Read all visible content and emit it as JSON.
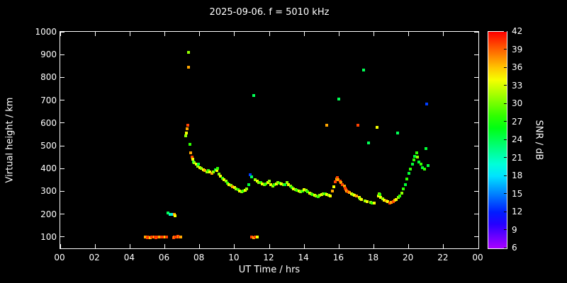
{
  "title": "2025-09-06. f = 5010 kHz",
  "chart_data": {
    "type": "scatter",
    "title": "2025-09-06. f = 5010 kHz",
    "xlabel": "UT Time / hrs",
    "ylabel": "Virtual height / km",
    "xlim": [
      0,
      24
    ],
    "ylim": [
      50,
      1000
    ],
    "background": "#000000",
    "axis_color": "#ffffff",
    "grid": false,
    "x_ticks": {
      "values": [
        0,
        2,
        4,
        6,
        8,
        10,
        12,
        14,
        16,
        18,
        20,
        22,
        24
      ],
      "labels": [
        "00",
        "02",
        "04",
        "06",
        "08",
        "10",
        "12",
        "14",
        "16",
        "18",
        "20",
        "22",
        "00"
      ]
    },
    "y_ticks": {
      "values": [
        100,
        200,
        300,
        400,
        500,
        600,
        700,
        800,
        900,
        1000
      ],
      "labels": [
        "100",
        "200",
        "300",
        "400",
        "500",
        "600",
        "700",
        "800",
        "900",
        "1000"
      ]
    },
    "colorbar": {
      "label": "SNR / dB",
      "min": 6,
      "max": 42,
      "ticks": [
        6,
        9,
        12,
        15,
        18,
        21,
        24,
        27,
        30,
        33,
        36,
        39,
        42
      ],
      "top_color": "#ff0000",
      "bottom_color": "#9900ff"
    },
    "points_format": [
      "ut_hours",
      "virtual_height_km",
      "snr_db"
    ],
    "points": [
      [
        4.9,
        100,
        37
      ],
      [
        5.0,
        98,
        40
      ],
      [
        5.05,
        100,
        40
      ],
      [
        5.15,
        97,
        36
      ],
      [
        5.25,
        100,
        40
      ],
      [
        5.3,
        99,
        40
      ],
      [
        5.4,
        100,
        36
      ],
      [
        5.45,
        100,
        40
      ],
      [
        5.5,
        98,
        40
      ],
      [
        5.6,
        100,
        40
      ],
      [
        5.7,
        100,
        37
      ],
      [
        5.8,
        99,
        40
      ],
      [
        5.9,
        100,
        40
      ],
      [
        6.0,
        100,
        36
      ],
      [
        6.1,
        100,
        40
      ],
      [
        6.5,
        98,
        40
      ],
      [
        6.55,
        100,
        37
      ],
      [
        6.6,
        100,
        40
      ],
      [
        6.65,
        101,
        40
      ],
      [
        6.7,
        100,
        40
      ],
      [
        6.75,
        102,
        40
      ],
      [
        6.8,
        100,
        37
      ],
      [
        6.85,
        100,
        40
      ],
      [
        6.9,
        100,
        37
      ],
      [
        6.2,
        205,
        24
      ],
      [
        6.3,
        200,
        21
      ],
      [
        6.45,
        198,
        18
      ],
      [
        6.55,
        200,
        37
      ],
      [
        6.6,
        192,
        34
      ],
      [
        7.2,
        545,
        31
      ],
      [
        7.25,
        555,
        34
      ],
      [
        7.3,
        575,
        37
      ],
      [
        7.32,
        590,
        40
      ],
      [
        7.35,
        910,
        31
      ],
      [
        7.38,
        845,
        37
      ],
      [
        7.45,
        505,
        28
      ],
      [
        7.5,
        470,
        37
      ],
      [
        7.55,
        452,
        40
      ],
      [
        7.6,
        440,
        34
      ],
      [
        7.65,
        430,
        25
      ],
      [
        7.7,
        425,
        31
      ],
      [
        7.8,
        418,
        34
      ],
      [
        7.9,
        410,
        31
      ],
      [
        7.95,
        420,
        25
      ],
      [
        8.0,
        405,
        34
      ],
      [
        8.1,
        400,
        31
      ],
      [
        8.2,
        396,
        34
      ],
      [
        8.3,
        390,
        37
      ],
      [
        8.4,
        386,
        31
      ],
      [
        8.5,
        390,
        28
      ],
      [
        8.6,
        385,
        34
      ],
      [
        8.7,
        380,
        37
      ],
      [
        8.8,
        384,
        31
      ],
      [
        8.9,
        394,
        25
      ],
      [
        9.0,
        390,
        34
      ],
      [
        9.05,
        400,
        28
      ],
      [
        9.1,
        376,
        31
      ],
      [
        9.2,
        366,
        34
      ],
      [
        9.3,
        356,
        28
      ],
      [
        9.4,
        350,
        34
      ],
      [
        9.5,
        344,
        31
      ],
      [
        9.6,
        336,
        28
      ],
      [
        9.7,
        330,
        34
      ],
      [
        9.8,
        325,
        31
      ],
      [
        9.9,
        320,
        37
      ],
      [
        10.0,
        318,
        34
      ],
      [
        10.1,
        312,
        31
      ],
      [
        10.2,
        308,
        28
      ],
      [
        10.3,
        300,
        34
      ],
      [
        10.4,
        298,
        31
      ],
      [
        10.5,
        302,
        28
      ],
      [
        10.6,
        306,
        34
      ],
      [
        10.7,
        310,
        31
      ],
      [
        10.8,
        330,
        25
      ],
      [
        10.9,
        372,
        13
      ],
      [
        11.0,
        364,
        24
      ],
      [
        11.1,
        720,
        24
      ],
      [
        11.0,
        100,
        40
      ],
      [
        11.1,
        98,
        37
      ],
      [
        11.2,
        100,
        40
      ],
      [
        11.3,
        100,
        34
      ],
      [
        11.2,
        350,
        31
      ],
      [
        11.3,
        346,
        34
      ],
      [
        11.4,
        340,
        31
      ],
      [
        11.5,
        338,
        28
      ],
      [
        11.6,
        332,
        34
      ],
      [
        11.7,
        328,
        31
      ],
      [
        11.8,
        334,
        28
      ],
      [
        11.9,
        340,
        34
      ],
      [
        12.0,
        344,
        31
      ],
      [
        12.1,
        330,
        34
      ],
      [
        12.2,
        322,
        31
      ],
      [
        12.3,
        328,
        28
      ],
      [
        12.4,
        334,
        34
      ],
      [
        12.5,
        340,
        31
      ],
      [
        12.6,
        336,
        28
      ],
      [
        12.7,
        332,
        34
      ],
      [
        12.8,
        330,
        31
      ],
      [
        12.9,
        328,
        25
      ],
      [
        13.0,
        338,
        31
      ],
      [
        13.1,
        330,
        34
      ],
      [
        13.2,
        324,
        31
      ],
      [
        13.3,
        318,
        28
      ],
      [
        13.4,
        312,
        34
      ],
      [
        13.5,
        308,
        31
      ],
      [
        13.6,
        304,
        28
      ],
      [
        13.7,
        300,
        34
      ],
      [
        13.8,
        298,
        31
      ],
      [
        13.9,
        302,
        28
      ],
      [
        14.0,
        308,
        34
      ],
      [
        14.1,
        304,
        31
      ],
      [
        14.2,
        298,
        28
      ],
      [
        14.3,
        293,
        34
      ],
      [
        14.4,
        290,
        31
      ],
      [
        14.5,
        287,
        28
      ],
      [
        14.6,
        284,
        34
      ],
      [
        14.7,
        280,
        31
      ],
      [
        14.8,
        278,
        28
      ],
      [
        14.9,
        282,
        31
      ],
      [
        15.0,
        286,
        34
      ],
      [
        15.1,
        290,
        31
      ],
      [
        15.2,
        288,
        28
      ],
      [
        15.3,
        285,
        34
      ],
      [
        15.3,
        590,
        37
      ],
      [
        15.4,
        282,
        31
      ],
      [
        15.5,
        280,
        34
      ],
      [
        15.6,
        300,
        37
      ],
      [
        15.7,
        320,
        34
      ],
      [
        15.8,
        342,
        40
      ],
      [
        15.85,
        355,
        37
      ],
      [
        15.9,
        362,
        40
      ],
      [
        15.95,
        350,
        37
      ],
      [
        16.0,
        705,
        24
      ],
      [
        16.05,
        345,
        40
      ],
      [
        16.1,
        338,
        37
      ],
      [
        16.2,
        330,
        40
      ],
      [
        16.3,
        322,
        37
      ],
      [
        16.35,
        315,
        40
      ],
      [
        16.4,
        308,
        40
      ],
      [
        16.45,
        302,
        37
      ],
      [
        16.5,
        298,
        40
      ],
      [
        16.6,
        295,
        37
      ],
      [
        16.7,
        290,
        34
      ],
      [
        16.8,
        287,
        31
      ],
      [
        16.9,
        284,
        34
      ],
      [
        17.0,
        280,
        37
      ],
      [
        17.1,
        590,
        40
      ],
      [
        17.15,
        272,
        34
      ],
      [
        17.2,
        268,
        31
      ],
      [
        17.3,
        264,
        34
      ],
      [
        17.4,
        833,
        24
      ],
      [
        17.5,
        258,
        31
      ],
      [
        17.6,
        255,
        34
      ],
      [
        17.7,
        512,
        24
      ],
      [
        17.8,
        252,
        31
      ],
      [
        17.9,
        250,
        28
      ],
      [
        18.0,
        248,
        34
      ],
      [
        18.2,
        582,
        34
      ],
      [
        18.25,
        280,
        34
      ],
      [
        18.3,
        290,
        31
      ],
      [
        18.35,
        285,
        28
      ],
      [
        18.4,
        275,
        34
      ],
      [
        18.5,
        268,
        31
      ],
      [
        18.6,
        262,
        34
      ],
      [
        18.7,
        258,
        37
      ],
      [
        18.8,
        254,
        34
      ],
      [
        18.9,
        250,
        40
      ],
      [
        19.0,
        252,
        37
      ],
      [
        19.1,
        256,
        40
      ],
      [
        19.2,
        260,
        37
      ],
      [
        19.3,
        265,
        34
      ],
      [
        19.35,
        555,
        24
      ],
      [
        19.4,
        272,
        31
      ],
      [
        19.5,
        280,
        28
      ],
      [
        19.6,
        292,
        31
      ],
      [
        19.7,
        310,
        28
      ],
      [
        19.8,
        330,
        25
      ],
      [
        19.9,
        355,
        28
      ],
      [
        20.0,
        378,
        25
      ],
      [
        20.1,
        398,
        28
      ],
      [
        20.2,
        418,
        25
      ],
      [
        20.3,
        438,
        28
      ],
      [
        20.35,
        455,
        25
      ],
      [
        20.45,
        468,
        28
      ],
      [
        20.5,
        450,
        31
      ],
      [
        20.6,
        430,
        25
      ],
      [
        20.7,
        418,
        28
      ],
      [
        20.8,
        405,
        25
      ],
      [
        20.9,
        398,
        28
      ],
      [
        21.0,
        488,
        25
      ],
      [
        21.05,
        682,
        13
      ],
      [
        21.1,
        412,
        25
      ]
    ]
  }
}
